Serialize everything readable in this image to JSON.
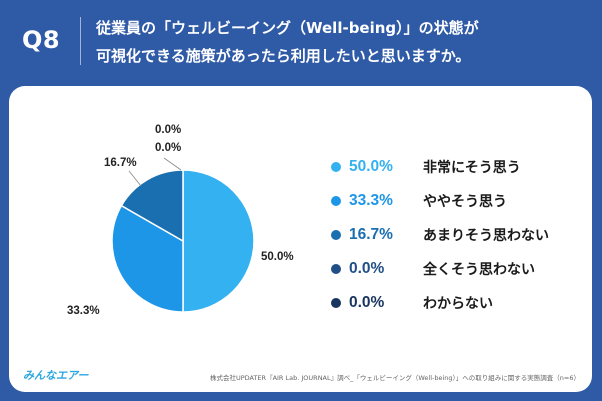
{
  "header": {
    "qnum": "Q8",
    "title_line1": "従業員の「ウェルビーイング（Well-being）」の状態が",
    "title_line2": "可視化できる施策があったら利用したいと思いますか。"
  },
  "chart_data": {
    "type": "pie",
    "slices": [
      {
        "label": "非常にそう思う",
        "value": 50.0,
        "display": "50.0%",
        "color": "#34b1f0"
      },
      {
        "label": "ややそう思う",
        "value": 33.3,
        "display": "33.3%",
        "color": "#1e96e8"
      },
      {
        "label": "あまりそう思わない",
        "value": 16.7,
        "display": "16.7%",
        "color": "#1a6fb1"
      },
      {
        "label": "全くそう思わない",
        "value": 0.0,
        "display": "0.0%",
        "color": "#1f4f86"
      },
      {
        "label": "わからない",
        "value": 0.0,
        "display": "0.0%",
        "color": "#17355f"
      }
    ],
    "legend_position": "right"
  },
  "footer": {
    "logo": "みんなエアー",
    "source": "株式会社UPDATER『AIR Lab. JOURNAL』調べ_「ウェルビーイング（Well-being）」への取り組みに関する実態調査（n=6）"
  }
}
